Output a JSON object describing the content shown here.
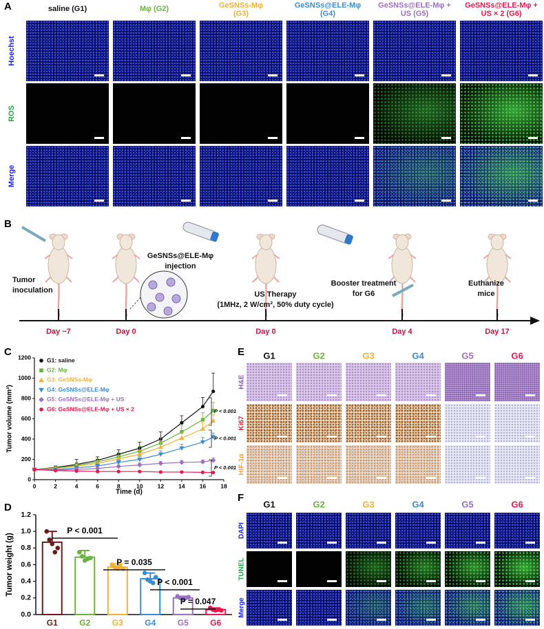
{
  "panel_labels": [
    "A",
    "B",
    "C",
    "D",
    "E",
    "F"
  ],
  "panel_a": {
    "columns": [
      [
        "saline (G1)"
      ],
      [
        "Mφ (G2)"
      ],
      [
        "GeSNSs-Mφ",
        "(G3)"
      ],
      [
        "GeSNSs@ELE-Mφ",
        "(G4)"
      ],
      [
        "GeSNSs@ELE-Mφ +",
        "US (G5)"
      ],
      [
        "GeSNSs@ELE-Mφ +",
        "US × 2 (G6)"
      ]
    ],
    "rows": [
      "Hoechst",
      "ROS",
      "Merge"
    ]
  },
  "panel_b": {
    "steps": [
      {
        "label": [
          "Tumor",
          "inoculation"
        ],
        "day": "Day −7"
      },
      {
        "label": [
          "GeSNSs@ELE-Mφ",
          "injection"
        ],
        "day": "Day 0"
      },
      {
        "label": [
          "US Therapy",
          "(1MHz, 2 W/cm², 50% duty cycle)"
        ],
        "day": "Day 0"
      },
      {
        "label": [
          "Booster treatment",
          "for G6"
        ],
        "day": "Day 4"
      },
      {
        "label": [
          "Euthanize",
          "mice"
        ],
        "day": "Day 17"
      }
    ]
  },
  "chart_data": [
    {
      "type": "line",
      "x": [
        0,
        2,
        4,
        6,
        8,
        10,
        12,
        14,
        16,
        17
      ],
      "xlim": [
        0,
        18
      ],
      "xticks": [
        0,
        2,
        4,
        6,
        8,
        10,
        12,
        14,
        16,
        18
      ],
      "ylim": [
        0,
        1200
      ],
      "yticks": [
        0,
        200,
        400,
        600,
        800,
        1000,
        1200
      ],
      "xlabel": "Time (d)",
      "ylabel": "Tumor volume (mm³)",
      "legend": "upper left",
      "series": [
        {
          "name": "G1: saline",
          "color": "#111111",
          "marker": "circle",
          "values": [
            100,
            120,
            150,
            190,
            250,
            310,
            400,
            560,
            720,
            870
          ],
          "errors": [
            10,
            15,
            50,
            35,
            45,
            60,
            70,
            70,
            90,
            180
          ]
        },
        {
          "name": "G2: Mφ",
          "color": "#6ab23e",
          "marker": "square",
          "values": [
            100,
            115,
            140,
            175,
            225,
            280,
            360,
            470,
            590,
            680
          ],
          "errors": [
            8,
            12,
            30,
            30,
            40,
            50,
            55,
            60,
            70,
            80
          ]
        },
        {
          "name": "G3: GeSNSs-Mφ",
          "color": "#f2b134",
          "marker": "triangle",
          "values": [
            100,
            110,
            130,
            160,
            205,
            250,
            320,
            410,
            500,
            580
          ],
          "errors": [
            8,
            10,
            25,
            25,
            35,
            40,
            45,
            50,
            60,
            60
          ]
        },
        {
          "name": "G4: GeSNSs@ELE-Mφ",
          "color": "#3a8ccf",
          "marker": "triangle-down",
          "values": [
            100,
            100,
            115,
            135,
            170,
            200,
            250,
            310,
            370,
            420
          ],
          "errors": [
            8,
            10,
            20,
            20,
            25,
            30,
            35,
            40,
            45,
            40
          ]
        },
        {
          "name": "G5: GeSNSs@ELE-Mφ + US",
          "color": "#9b6fc0",
          "marker": "diamond",
          "values": [
            100,
            95,
            100,
            110,
            130,
            145,
            160,
            170,
            175,
            190
          ],
          "errors": [
            8,
            10,
            15,
            15,
            15,
            20,
            20,
            20,
            20,
            25
          ]
        },
        {
          "name": "G6: GeSNSs@ELE-Mφ + US × 2",
          "color": "#e8184e",
          "marker": "circle",
          "values": [
            100,
            90,
            85,
            80,
            80,
            80,
            75,
            75,
            72,
            70
          ],
          "errors": [
            8,
            8,
            8,
            8,
            6,
            6,
            6,
            6,
            5,
            5
          ]
        }
      ],
      "annotations": [
        "P < 0.001",
        "P < 0.001",
        "P < 0.001"
      ]
    },
    {
      "type": "bar",
      "categories": [
        "G1",
        "G2",
        "G3",
        "G4",
        "G5",
        "G6"
      ],
      "values": [
        0.87,
        0.69,
        0.57,
        0.43,
        0.2,
        0.06
      ],
      "errors": [
        0.13,
        0.08,
        0.04,
        0.07,
        0.02,
        0.02
      ],
      "points": [
        [
          1.0,
          0.9,
          0.85,
          0.75,
          0.8
        ],
        [
          0.75,
          0.7,
          0.65,
          0.67,
          0.68
        ],
        [
          0.6,
          0.57,
          0.55,
          0.58,
          0.55
        ],
        [
          0.5,
          0.42,
          0.4,
          0.38,
          0.45
        ],
        [
          0.22,
          0.2,
          0.19,
          0.2,
          0.21
        ],
        [
          0.08,
          0.06,
          0.05,
          0.06,
          0.05
        ]
      ],
      "colors": [
        "#6b1b1b",
        "#6ab23e",
        "#f2b134",
        "#3a8ccf",
        "#9b6fc0",
        "#e8184e"
      ],
      "ylim": [
        0,
        1.2
      ],
      "yticks": [
        {
          "value": 0,
          "label": "0.0"
        },
        0.2,
        0.4,
        0.6,
        0.8,
        {
          "value": 1,
          "label": "1.0"
        },
        1.2
      ],
      "ylabel": "Tumor weight (g)",
      "annotations": [
        "P < 0.001",
        "P = 0.035",
        "P < 0.001",
        "P = 0.047"
      ]
    }
  ],
  "panel_e": {
    "columns": [
      "G1",
      "G2",
      "G3",
      "G4",
      "G5",
      "G6"
    ],
    "rows": [
      "H&E",
      "Ki67",
      "HIF-1α"
    ]
  },
  "panel_f": {
    "columns": [
      "G1",
      "G2",
      "G3",
      "G4",
      "G5",
      "G6"
    ],
    "rows": [
      "DAPI",
      "TUNEL",
      "Merge"
    ]
  }
}
